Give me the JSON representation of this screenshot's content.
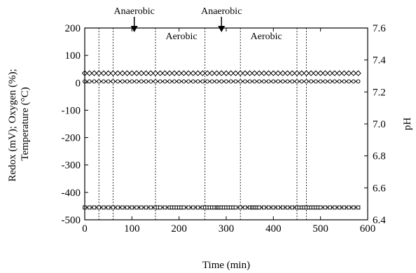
{
  "chart_data": {
    "type": "line",
    "title": "",
    "xlabel": "Time (min)",
    "ylabel_left_lines": [
      "Redox (mV); Oxygen (%);",
      "Temperature (°C)"
    ],
    "ylabel_right": "pH",
    "xlim": [
      0,
      600
    ],
    "ylim_left": [
      -500,
      200
    ],
    "ylim_right": [
      6.4,
      7.6
    ],
    "x_ticks": [
      0,
      100,
      200,
      300,
      400,
      500,
      600
    ],
    "y_ticks_left": [
      -500,
      -400,
      -300,
      -200,
      -100,
      0,
      100,
      200
    ],
    "y_ticks_right": [
      6.4,
      6.6,
      6.8,
      7.0,
      7.2,
      7.4,
      7.6
    ],
    "y_tick_labels_right": [
      "6.4",
      "6.6",
      "6.8",
      "7.0",
      "7.2",
      "7.4",
      "7.6"
    ],
    "vertical_dotted_lines": [
      30,
      60,
      150,
      255,
      330,
      450,
      470
    ],
    "annotations": [
      {
        "text": "Anaerobic",
        "x": 105,
        "arrow": true
      },
      {
        "text": "Aerobic",
        "x": 205,
        "arrow": false
      },
      {
        "text": "Anaerobic",
        "x": 290,
        "arrow": true
      },
      {
        "text": "Aerobic",
        "x": 385,
        "arrow": false
      }
    ],
    "series": [
      {
        "marker": "diamond",
        "axis": "left",
        "x": [
          0,
          10,
          20,
          30,
          40,
          50,
          60,
          70,
          80,
          90,
          100,
          110,
          120,
          130,
          140,
          150,
          160,
          170,
          180,
          190,
          200,
          210,
          220,
          230,
          240,
          250,
          260,
          270,
          280,
          290,
          300,
          310,
          320,
          330,
          340,
          350,
          360,
          370,
          380,
          390,
          400,
          410,
          420,
          430,
          440,
          450,
          460,
          470,
          480,
          490,
          500,
          510,
          520,
          530,
          540,
          550,
          560,
          570,
          580
        ],
        "y": [
          35,
          35,
          35,
          35,
          35,
          35,
          35,
          35,
          35,
          35,
          35,
          35,
          35,
          35,
          35,
          35,
          35,
          35,
          35,
          35,
          35,
          35,
          35,
          35,
          35,
          35,
          35,
          35,
          35,
          35,
          35,
          35,
          35,
          35,
          35,
          35,
          35,
          35,
          35,
          35,
          35,
          35,
          35,
          35,
          35,
          35,
          35,
          35,
          35,
          35,
          35,
          35,
          35,
          35,
          35,
          35,
          35,
          35,
          35
        ]
      },
      {
        "marker": "circle",
        "axis": "left",
        "x": [
          0,
          10,
          20,
          30,
          40,
          50,
          60,
          70,
          80,
          90,
          100,
          110,
          120,
          130,
          140,
          150,
          160,
          170,
          180,
          190,
          200,
          210,
          220,
          230,
          240,
          250,
          260,
          270,
          280,
          290,
          300,
          310,
          320,
          330,
          340,
          350,
          360,
          370,
          380,
          390,
          400,
          410,
          420,
          430,
          440,
          450,
          460,
          470,
          480,
          490,
          500,
          510,
          520,
          530,
          540,
          550,
          560,
          570,
          580
        ],
        "y": [
          5,
          5,
          5,
          5,
          5,
          5,
          5,
          5,
          5,
          5,
          5,
          5,
          5,
          5,
          5,
          5,
          5,
          5,
          5,
          5,
          5,
          5,
          5,
          5,
          5,
          5,
          5,
          5,
          5,
          5,
          5,
          5,
          5,
          5,
          5,
          5,
          5,
          5,
          5,
          5,
          5,
          5,
          5,
          5,
          5,
          5,
          5,
          5,
          5,
          5,
          5,
          5,
          5,
          5,
          5,
          5,
          5,
          5,
          5
        ]
      },
      {
        "marker": "square",
        "axis": "left",
        "x": [
          0,
          10,
          20,
          30,
          40,
          50,
          60,
          70,
          80,
          90,
          100,
          110,
          120,
          130,
          140,
          150,
          155,
          160,
          170,
          180,
          185,
          190,
          195,
          200,
          205,
          210,
          220,
          230,
          240,
          250,
          255,
          260,
          265,
          270,
          275,
          280,
          283,
          286,
          290,
          295,
          300,
          305,
          310,
          315,
          320,
          330,
          340,
          350,
          355,
          358,
          362,
          366,
          370,
          380,
          390,
          400,
          410,
          420,
          430,
          440,
          450,
          455,
          460,
          465,
          470,
          475,
          480,
          485,
          490,
          495,
          500,
          510,
          520,
          530,
          540,
          550,
          560,
          570,
          580
        ],
        "y": [
          -455,
          -455,
          -455,
          -455,
          -455,
          -455,
          -455,
          -455,
          -455,
          -455,
          -455,
          -455,
          -455,
          -455,
          -455,
          -455,
          -455,
          -455,
          -455,
          -455,
          -455,
          -455,
          -455,
          -455,
          -455,
          -455,
          -455,
          -455,
          -455,
          -455,
          -455,
          -455,
          -455,
          -455,
          -455,
          -455,
          -455,
          -455,
          -455,
          -455,
          -455,
          -455,
          -455,
          -455,
          -455,
          -455,
          -455,
          -455,
          -455,
          -455,
          -455,
          -455,
          -455,
          -455,
          -455,
          -455,
          -455,
          -455,
          -455,
          -455,
          -455,
          -455,
          -455,
          -455,
          -455,
          -455,
          -455,
          -455,
          -455,
          -455,
          -455,
          -455,
          -455,
          -455,
          -455,
          -455,
          -455,
          -455,
          -455
        ]
      }
    ]
  }
}
